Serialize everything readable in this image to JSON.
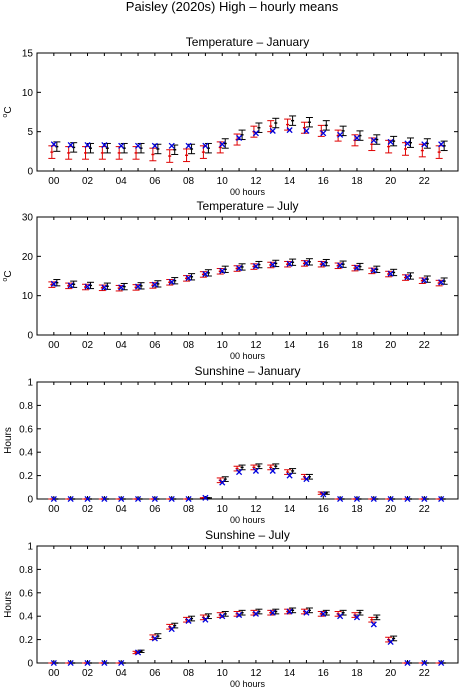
{
  "figure_title": "Paisley (2020s) High – hourly means",
  "colors": {
    "red": "#e00000",
    "black": "#000000",
    "blue": "#0000dd"
  },
  "chart_data": [
    {
      "type": "scatter",
      "title": "Temperature – January",
      "xlabel": "00 hours",
      "ylabel": "°C",
      "ylabel_sup": "o",
      "ylabel_main": "C",
      "ylim": [
        0,
        15
      ],
      "yticks": [
        0,
        5,
        10,
        15
      ],
      "xlim": [
        -1,
        24
      ],
      "xtick_labels": [
        "00",
        "02",
        "04",
        "06",
        "08",
        "10",
        "12",
        "14",
        "16",
        "18",
        "20",
        "22"
      ],
      "x": [
        0,
        1,
        2,
        3,
        4,
        5,
        6,
        7,
        8,
        9,
        10,
        11,
        12,
        13,
        14,
        15,
        16,
        17,
        18,
        19,
        20,
        21,
        22,
        23
      ],
      "series": [
        {
          "style": "red-errorbar",
          "mid": [
            2.4,
            2.3,
            2.3,
            2.3,
            2.3,
            2.3,
            2.1,
            1.9,
            2.0,
            2.4,
            3.0,
            4.0,
            5.0,
            5.7,
            5.9,
            5.5,
            5.1,
            4.5,
            3.9,
            3.4,
            3.1,
            2.8,
            2.6,
            2.4
          ],
          "err": [
            0.8,
            0.8,
            0.8,
            0.8,
            0.8,
            0.8,
            0.8,
            0.8,
            0.8,
            0.8,
            0.7,
            0.7,
            0.7,
            0.7,
            0.7,
            0.7,
            0.7,
            0.7,
            0.7,
            0.8,
            0.8,
            0.8,
            0.8,
            0.8
          ]
        },
        {
          "style": "black-errorbar",
          "mid": [
            3.1,
            3.0,
            2.9,
            2.9,
            2.9,
            2.9,
            2.8,
            2.7,
            2.8,
            2.9,
            3.5,
            4.6,
            5.5,
            6.1,
            6.4,
            6.2,
            5.8,
            5.1,
            4.5,
            4.0,
            3.8,
            3.6,
            3.5,
            3.2
          ],
          "err": [
            0.6,
            0.6,
            0.6,
            0.6,
            0.6,
            0.6,
            0.6,
            0.6,
            0.6,
            0.6,
            0.6,
            0.6,
            0.6,
            0.6,
            0.6,
            0.6,
            0.6,
            0.6,
            0.6,
            0.6,
            0.6,
            0.6,
            0.6,
            0.6
          ]
        },
        {
          "style": "blue-x",
          "mid": [
            3.4,
            3.3,
            3.3,
            3.3,
            3.2,
            3.2,
            3.2,
            3.2,
            3.2,
            3.2,
            3.4,
            4.2,
            4.8,
            5.1,
            5.2,
            5.1,
            4.8,
            4.6,
            4.2,
            3.9,
            3.7,
            3.5,
            3.4,
            3.4
          ]
        }
      ]
    },
    {
      "type": "scatter",
      "title": "Temperature – July",
      "xlabel": "00 hours",
      "ylabel": "°C",
      "ylabel_sup": "o",
      "ylabel_main": "C",
      "ylim": [
        0,
        30
      ],
      "yticks": [
        0,
        10,
        20,
        30
      ],
      "xlim": [
        -1,
        24
      ],
      "xtick_labels": [
        "00",
        "02",
        "04",
        "06",
        "08",
        "10",
        "12",
        "14",
        "16",
        "18",
        "20",
        "22"
      ],
      "x": [
        0,
        1,
        2,
        3,
        4,
        5,
        6,
        7,
        8,
        9,
        10,
        11,
        12,
        13,
        14,
        15,
        16,
        17,
        18,
        19,
        20,
        21,
        22,
        23
      ],
      "series": [
        {
          "style": "red-errorbar",
          "mid": [
            12.8,
            12.5,
            12.2,
            12.0,
            11.9,
            12.1,
            12.6,
            13.4,
            14.4,
            15.4,
            16.2,
            16.9,
            17.4,
            17.8,
            18.0,
            18.2,
            18.0,
            17.6,
            17.0,
            16.3,
            15.5,
            14.6,
            13.8,
            13.2
          ],
          "err": [
            0.7,
            0.7,
            0.7,
            0.7,
            0.7,
            0.7,
            0.7,
            0.7,
            0.7,
            0.7,
            0.7,
            0.7,
            0.7,
            0.7,
            0.7,
            0.7,
            0.7,
            0.7,
            0.7,
            0.7,
            0.7,
            0.7,
            0.7,
            0.7
          ]
        },
        {
          "style": "black-errorbar",
          "mid": [
            13.3,
            12.9,
            12.6,
            12.4,
            12.3,
            12.5,
            13.0,
            13.8,
            14.8,
            15.8,
            16.7,
            17.3,
            17.9,
            18.2,
            18.5,
            18.6,
            18.4,
            18.0,
            17.4,
            16.7,
            15.9,
            15.0,
            14.2,
            13.7
          ],
          "err": [
            0.8,
            0.8,
            0.8,
            0.8,
            0.8,
            0.8,
            0.8,
            0.8,
            0.8,
            0.8,
            0.8,
            0.8,
            0.8,
            0.8,
            0.8,
            0.8,
            0.8,
            0.8,
            0.8,
            0.8,
            0.8,
            0.8,
            0.8,
            0.8
          ]
        },
        {
          "style": "blue-x",
          "mid": [
            13.0,
            12.6,
            12.3,
            12.1,
            12.1,
            12.3,
            12.8,
            13.5,
            14.5,
            15.5,
            16.3,
            17.0,
            17.5,
            17.9,
            18.1,
            18.3,
            18.1,
            17.7,
            17.1,
            16.4,
            15.6,
            14.7,
            13.9,
            13.4
          ]
        }
      ]
    },
    {
      "type": "scatter",
      "title": "Sunshine – January",
      "xlabel": "00 hours",
      "ylabel": "Hours",
      "ylim": [
        0,
        1
      ],
      "yticks": [
        0,
        0.2,
        0.4,
        0.6,
        0.8,
        1
      ],
      "xlim": [
        -1,
        24
      ],
      "xtick_labels": [
        "00",
        "02",
        "04",
        "06",
        "08",
        "10",
        "12",
        "14",
        "16",
        "18",
        "20",
        "22"
      ],
      "x": [
        0,
        1,
        2,
        3,
        4,
        5,
        6,
        7,
        8,
        9,
        10,
        11,
        12,
        13,
        14,
        15,
        16,
        17,
        18,
        19,
        20,
        21,
        22,
        23
      ],
      "series": [
        {
          "style": "red-errorbar",
          "mid": [
            0,
            0,
            0,
            0,
            0,
            0,
            0,
            0,
            0,
            0.01,
            0.16,
            0.26,
            0.27,
            0.27,
            0.23,
            0.19,
            0.05,
            0,
            0,
            0,
            0,
            0,
            0,
            0
          ],
          "err": [
            0,
            0,
            0,
            0,
            0,
            0,
            0,
            0,
            0,
            0,
            0.02,
            0.02,
            0.02,
            0.02,
            0.02,
            0.02,
            0.01,
            0,
            0,
            0,
            0,
            0,
            0,
            0
          ]
        },
        {
          "style": "black-errorbar",
          "mid": [
            0,
            0,
            0,
            0,
            0,
            0,
            0,
            0,
            0,
            0.01,
            0.17,
            0.27,
            0.28,
            0.28,
            0.24,
            0.19,
            0.05,
            0,
            0,
            0,
            0,
            0,
            0,
            0
          ],
          "err": [
            0,
            0,
            0,
            0,
            0,
            0,
            0,
            0,
            0,
            0,
            0.02,
            0.02,
            0.02,
            0.02,
            0.02,
            0.02,
            0.01,
            0,
            0,
            0,
            0,
            0,
            0,
            0
          ]
        },
        {
          "style": "blue-x",
          "mid": [
            0,
            0,
            0,
            0,
            0,
            0,
            0,
            0,
            0,
            0.01,
            0.14,
            0.23,
            0.24,
            0.24,
            0.2,
            0.17,
            0.04,
            0,
            0,
            0,
            0,
            0,
            0,
            0
          ]
        }
      ]
    },
    {
      "type": "scatter",
      "title": "Sunshine – July",
      "xlabel": "00 hours",
      "ylabel": "Hours",
      "ylim": [
        0,
        1
      ],
      "yticks": [
        0,
        0.2,
        0.4,
        0.6,
        0.8,
        1
      ],
      "xlim": [
        -1,
        24
      ],
      "xtick_labels": [
        "00",
        "02",
        "04",
        "06",
        "08",
        "10",
        "12",
        "14",
        "16",
        "18",
        "20",
        "22"
      ],
      "x": [
        0,
        1,
        2,
        3,
        4,
        5,
        6,
        7,
        8,
        9,
        10,
        11,
        12,
        13,
        14,
        15,
        16,
        17,
        18,
        19,
        20,
        21,
        22,
        23
      ],
      "series": [
        {
          "style": "red-errorbar",
          "mid": [
            0,
            0,
            0,
            0,
            0,
            0.09,
            0.22,
            0.31,
            0.37,
            0.39,
            0.41,
            0.42,
            0.43,
            0.43,
            0.44,
            0.44,
            0.42,
            0.42,
            0.41,
            0.37,
            0.2,
            0,
            0,
            0
          ],
          "err": [
            0,
            0,
            0,
            0,
            0,
            0.01,
            0.02,
            0.02,
            0.02,
            0.02,
            0.02,
            0.02,
            0.02,
            0.02,
            0.02,
            0.02,
            0.02,
            0.02,
            0.02,
            0.02,
            0.02,
            0,
            0,
            0
          ]
        },
        {
          "style": "black-errorbar",
          "mid": [
            0,
            0,
            0,
            0,
            0,
            0.1,
            0.23,
            0.32,
            0.38,
            0.4,
            0.42,
            0.43,
            0.44,
            0.44,
            0.45,
            0.45,
            0.43,
            0.43,
            0.43,
            0.39,
            0.21,
            0,
            0,
            0
          ],
          "err": [
            0,
            0,
            0,
            0,
            0,
            0.01,
            0.02,
            0.02,
            0.02,
            0.02,
            0.02,
            0.02,
            0.02,
            0.02,
            0.02,
            0.02,
            0.02,
            0.02,
            0.02,
            0.02,
            0.02,
            0,
            0,
            0
          ]
        },
        {
          "style": "blue-x",
          "mid": [
            0,
            0,
            0,
            0,
            0,
            0.09,
            0.21,
            0.29,
            0.36,
            0.37,
            0.4,
            0.41,
            0.42,
            0.43,
            0.44,
            0.43,
            0.42,
            0.4,
            0.39,
            0.33,
            0.18,
            0,
            0,
            0
          ]
        }
      ]
    }
  ]
}
